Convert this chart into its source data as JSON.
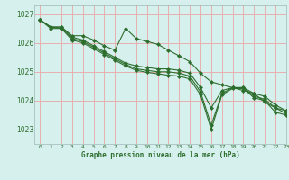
{
  "title": "Graphe pression niveau de la mer (hPa)",
  "background_color": "#d6f0ee",
  "grid_color": "#e8b0b0",
  "line_color": "#2d6e2d",
  "marker_color": "#2d6e2d",
  "xlim": [
    -0.5,
    23
  ],
  "ylim": [
    1022.5,
    1027.3
  ],
  "yticks": [
    1023,
    1024,
    1025,
    1026,
    1027
  ],
  "xticks": [
    0,
    1,
    2,
    3,
    4,
    5,
    6,
    7,
    8,
    9,
    10,
    11,
    12,
    13,
    14,
    15,
    16,
    17,
    18,
    19,
    20,
    21,
    22,
    23
  ],
  "series": [
    [
      1026.8,
      1026.55,
      1026.55,
      1026.25,
      1026.25,
      1026.1,
      1025.9,
      1025.75,
      1026.5,
      1026.15,
      1026.05,
      1025.95,
      1025.75,
      1025.55,
      1025.35,
      1024.95,
      1024.65,
      1024.55,
      1024.45,
      1024.35,
      1024.25,
      1023.95,
      1023.75,
      1023.65
    ],
    [
      1026.8,
      1026.55,
      1026.55,
      1026.2,
      1026.1,
      1025.9,
      1025.7,
      1025.5,
      1025.3,
      1025.2,
      1025.15,
      1025.1,
      1025.1,
      1025.05,
      1024.95,
      1024.45,
      1023.75,
      1024.35,
      1024.45,
      1024.45,
      1024.25,
      1024.15,
      1023.85,
      1023.65
    ],
    [
      1026.8,
      1026.55,
      1026.5,
      1026.15,
      1026.05,
      1025.85,
      1025.65,
      1025.45,
      1025.25,
      1025.1,
      1025.05,
      1025.0,
      1025.0,
      1024.95,
      1024.85,
      1024.3,
      1023.15,
      1024.25,
      1024.45,
      1024.45,
      1024.15,
      1024.05,
      1023.75,
      1023.55
    ],
    [
      1026.8,
      1026.5,
      1026.5,
      1026.1,
      1026.0,
      1025.8,
      1025.6,
      1025.4,
      1025.2,
      1025.05,
      1024.98,
      1024.93,
      1024.88,
      1024.85,
      1024.75,
      1024.2,
      1023.0,
      1024.2,
      1024.42,
      1024.42,
      1024.1,
      1024.0,
      1023.6,
      1023.5
    ]
  ]
}
